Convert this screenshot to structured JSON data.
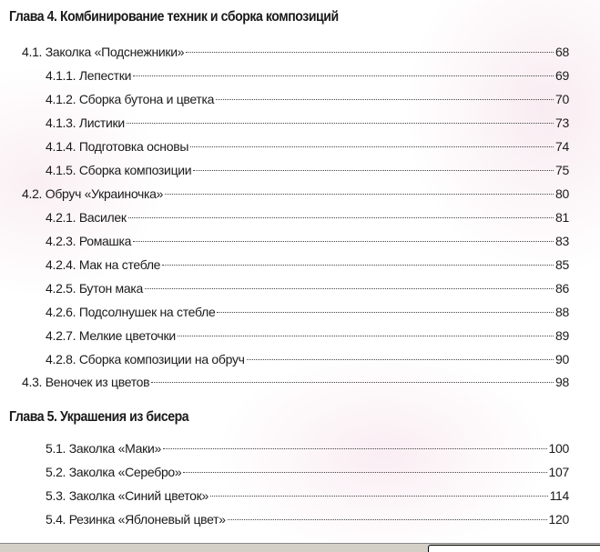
{
  "chapters": [
    {
      "title": "Глава 4. Комбинирование техник и сборка композиций",
      "entries": [
        {
          "label": "4.1. Заколка «Подснежники»",
          "page": "68",
          "level": 1
        },
        {
          "label": "4.1.1. Лепестки",
          "page": "69",
          "level": 2
        },
        {
          "label": "4.1.2. Сборка бутона и цветка",
          "page": "70",
          "level": 2
        },
        {
          "label": "4.1.3. Листики",
          "page": "73",
          "level": 2
        },
        {
          "label": "4.1.4. Подготовка основы",
          "page": "74",
          "level": 2
        },
        {
          "label": "4.1.5. Сборка композиции",
          "page": "75",
          "level": 2
        },
        {
          "label": "4.2. Обруч «Украиночка»",
          "page": "80",
          "level": 1
        },
        {
          "label": "4.2.1. Василек",
          "page": "81",
          "level": 2
        },
        {
          "label": "4.2.3. Ромашка",
          "page": "83",
          "level": 2
        },
        {
          "label": "4.2.4. Мак на стебле",
          "page": "85",
          "level": 2
        },
        {
          "label": "4.2.5. Бутон мака",
          "page": "86",
          "level": 2
        },
        {
          "label": "4.2.6. Подсолнушек на стебле",
          "page": "88",
          "level": 2
        },
        {
          "label": "4.2.7. Мелкие цветочки",
          "page": "89",
          "level": 2
        },
        {
          "label": "4.2.8. Сборка композиции на обруч",
          "page": "90",
          "level": 2
        },
        {
          "label": "4.3. Веночек из цветов",
          "page": "98",
          "level": 1
        }
      ]
    },
    {
      "title": "Глава 5. Украшения из бисера",
      "entries": [
        {
          "label": "5.1. Заколка «Маки»",
          "page": "100",
          "level": 2
        },
        {
          "label": "5.2. Заколка «Серебро»",
          "page": "107",
          "level": 2
        },
        {
          "label": "5.3. Заколка «Синий цветок»",
          "page": "114",
          "level": 2
        },
        {
          "label": "5.4. Резинка «Яблоневый цвет»",
          "page": "120",
          "level": 2
        }
      ]
    }
  ],
  "colors": {
    "background_pattern": "#ecc8d7",
    "text": "#1a1a1a"
  }
}
